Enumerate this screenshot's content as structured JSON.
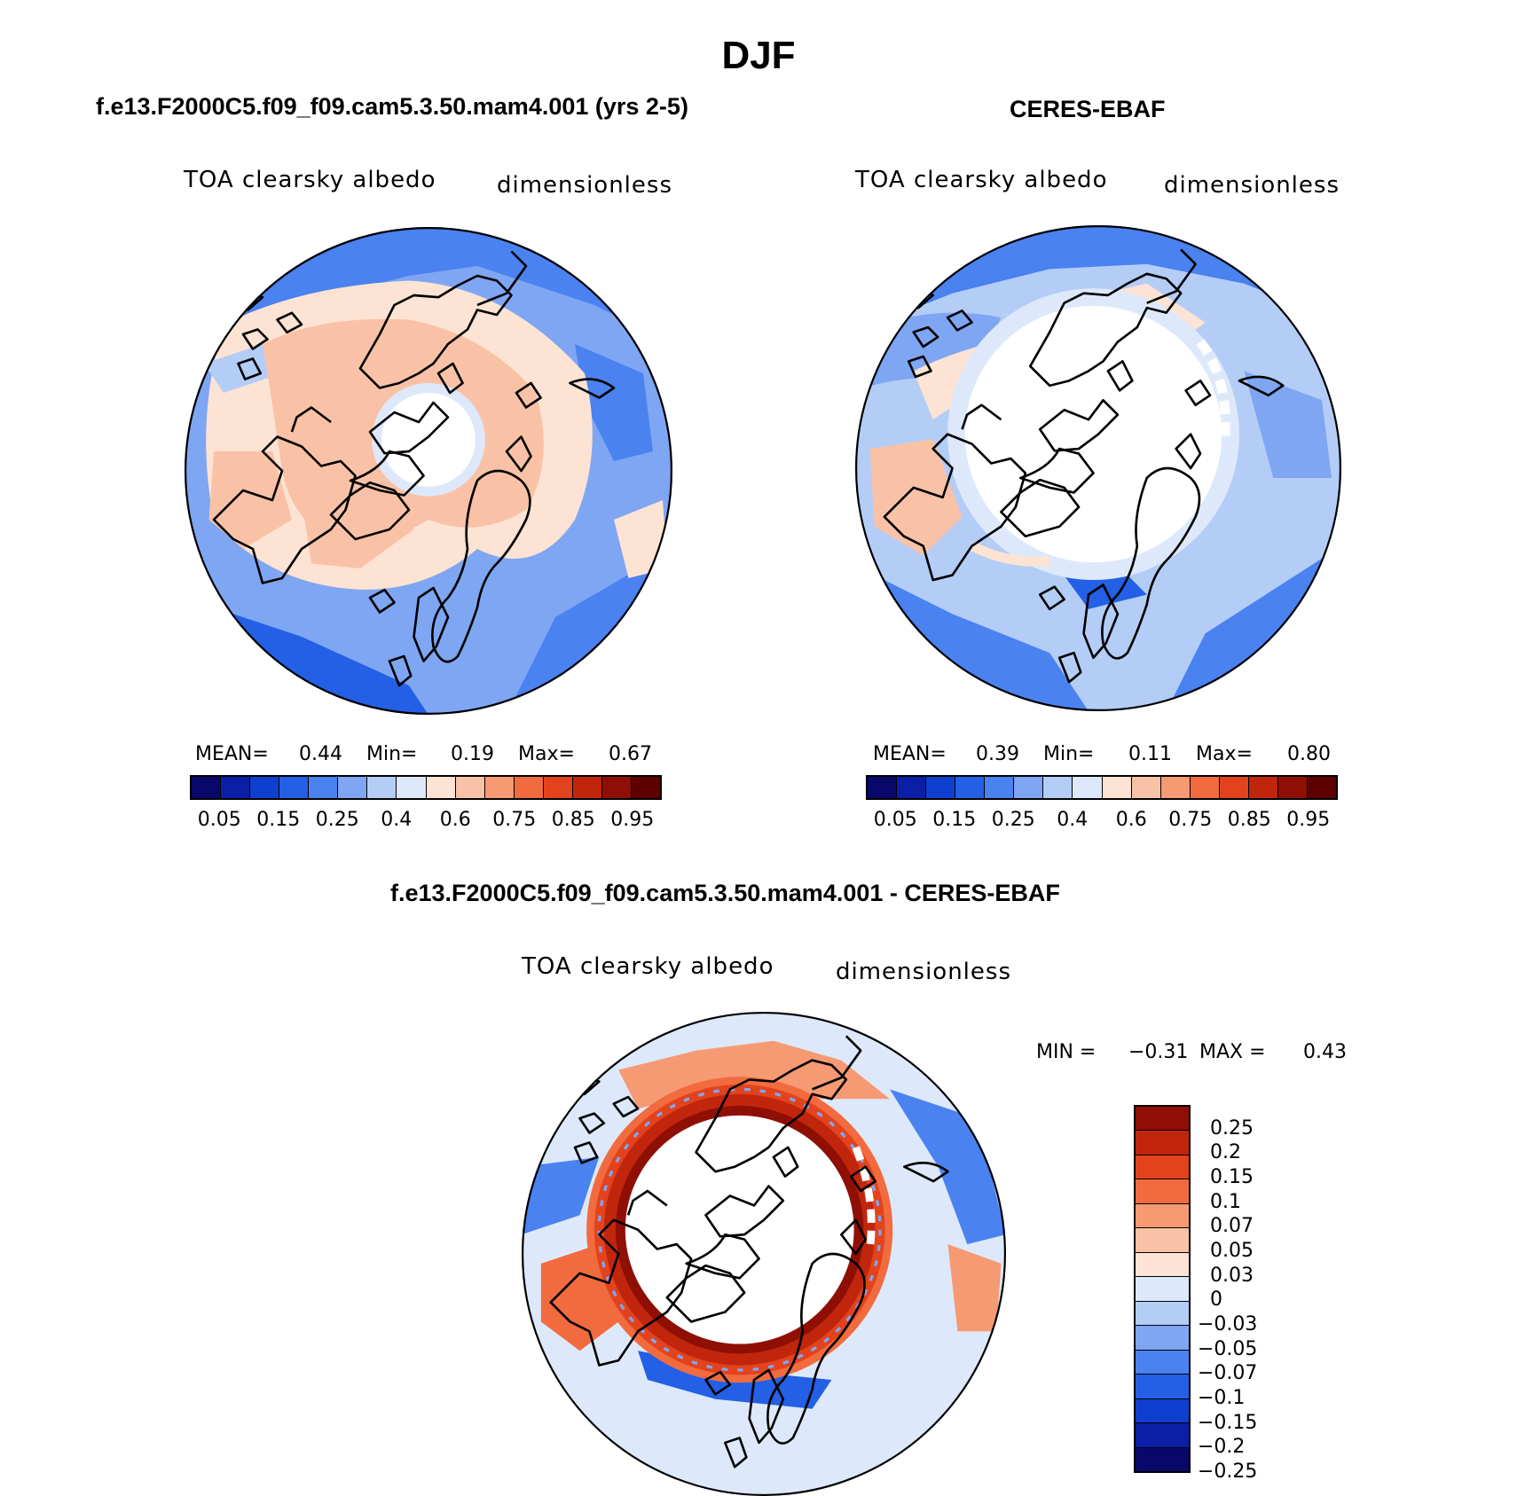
{
  "figure": {
    "title": "DJF"
  },
  "panels": {
    "model": {
      "title": "f.e13.F2000C5.f09_f09.cam5.3.50.mam4.001 (yrs 2-5)",
      "variable": "TOA clearsky albedo",
      "units": "dimensionless",
      "mean_label": "MEAN=",
      "mean_value": "0.44",
      "min_label": "Min=",
      "min_value": "0.19",
      "max_label": "Max=",
      "max_value": "0.67"
    },
    "obs": {
      "title": "CERES-EBAF",
      "variable": "TOA clearsky albedo",
      "units": "dimensionless",
      "mean_label": "MEAN=",
      "mean_value": "0.39",
      "min_label": "Min=",
      "min_value": "0.11",
      "max_label": "Max=",
      "max_value": "0.80"
    },
    "diff": {
      "title": "f.e13.F2000C5.f09_f09.cam5.3.50.mam4.001 - CERES-EBAF",
      "variable": "TOA clearsky albedo",
      "units": "dimensionless",
      "min_label": "MIN =",
      "min_value": "−0.31",
      "max_label": "MAX =",
      "max_value": "0.43"
    }
  },
  "colorbar_main": {
    "colors": [
      "#08086b",
      "#0a1fa6",
      "#0f3fcf",
      "#2360e6",
      "#4a82f0",
      "#7fa6f3",
      "#b4cdf7",
      "#dde9fb",
      "#fde3d3",
      "#f9c2a6",
      "#f69a73",
      "#f26b3f",
      "#e3431c",
      "#c1260d",
      "#8f0f05",
      "#5e0000"
    ],
    "labels": [
      "0.05",
      "0.15",
      "0.25",
      "0.4",
      "0.6",
      "0.75",
      "0.85",
      "0.95"
    ]
  },
  "colorbar_diff": {
    "colors": [
      "#8f0f05",
      "#c1260d",
      "#e3431c",
      "#f26b3f",
      "#f69a73",
      "#f9c2a6",
      "#fde3d3",
      "#dde9fb",
      "#b4cdf7",
      "#7fa6f3",
      "#4a82f0",
      "#2360e6",
      "#0f3fcf",
      "#0a1fa6",
      "#08086b"
    ],
    "labels": [
      "0.25",
      "0.2",
      "0.15",
      "0.1",
      "0.07",
      "0.05",
      "0.03",
      "0",
      "−0.03",
      "−0.05",
      "−0.07",
      "−0.1",
      "−0.15",
      "−0.2",
      "−0.25"
    ]
  }
}
